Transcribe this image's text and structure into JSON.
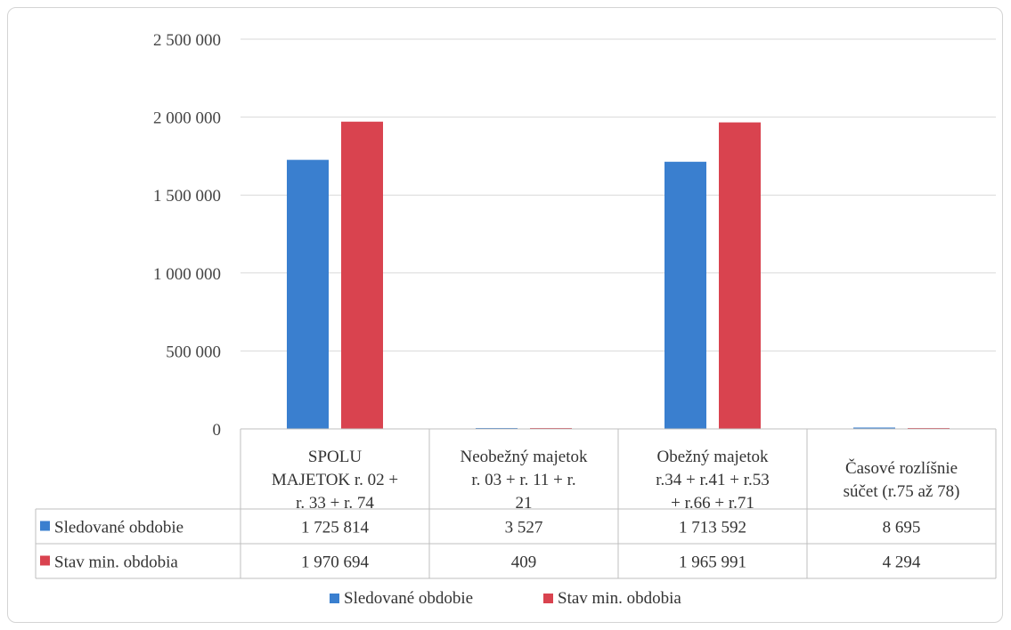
{
  "chart_data": {
    "type": "bar",
    "categories": [
      [
        "SPOLU",
        "MAJETOK r. 02 +",
        "r. 33 + r. 74"
      ],
      [
        "Neobežný majetok",
        "r. 03 + r. 11 + r.",
        "21"
      ],
      [
        "Obežný majetok",
        "r.34 + r.41 + r.53",
        "+ r.66 + r.71"
      ],
      [
        "Časové rozlíšnie",
        "súčet (r.75 až 78)"
      ]
    ],
    "series": [
      {
        "name": "Sledované obdobie",
        "color": "#3a7fcf",
        "values": [
          1725814,
          3527,
          1713592,
          8695
        ],
        "value_labels": [
          "1 725 814",
          "3 527",
          "1 713 592",
          "8 695"
        ]
      },
      {
        "name": "Stav min. obdobia",
        "color": "#d9434f",
        "values": [
          1970694,
          409,
          1965991,
          4294
        ],
        "value_labels": [
          "1 970 694",
          "409",
          "1 965 991",
          "4 294"
        ]
      }
    ],
    "ylim": [
      0,
      2500000
    ],
    "yticks": [
      0,
      500000,
      1000000,
      1500000,
      2000000,
      2500000
    ],
    "ytick_labels": [
      "0",
      "500 000",
      "1 000 000",
      "1 500 000",
      "2 000 000",
      "2 500 000"
    ],
    "grid": true,
    "data_table": true,
    "legend": "bottom"
  }
}
